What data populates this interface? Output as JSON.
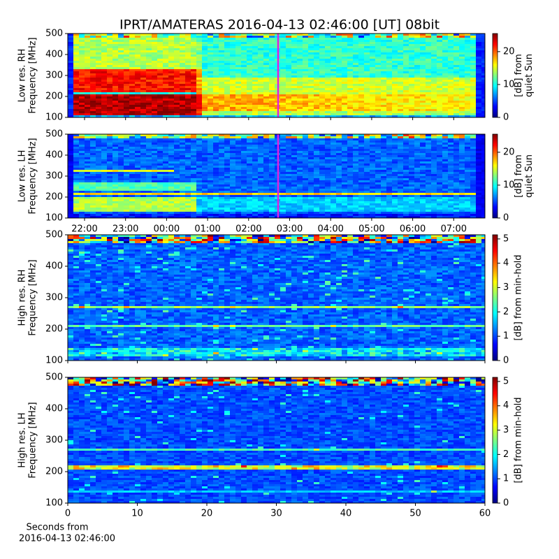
{
  "chart_data": [
    {
      "type": "heatmap",
      "title": "IPRT/AMATERAS 2016-04-13 02:46:00 [UT]   08bit",
      "ylabel": [
        "Low res. RH",
        "Frequency [MHz]"
      ],
      "ylim": [
        100,
        500
      ],
      "yticks": [
        100,
        200,
        300,
        400,
        500
      ],
      "colorbar": {
        "label": [
          "[dB] from",
          "quiet Sun"
        ],
        "lim": [
          0,
          25.5
        ],
        "ticks": [
          0,
          10,
          20
        ]
      }
    },
    {
      "type": "heatmap",
      "ylabel": [
        "Low res. LH",
        "Frequency [MHz]"
      ],
      "ylim": [
        100,
        500
      ],
      "yticks": [
        100,
        200,
        300,
        400,
        500
      ],
      "categories": [
        "22:00",
        "23:00",
        "00:00",
        "01:00",
        "02:00",
        "03:00",
        "04:00",
        "05:00",
        "06:00",
        "07:00"
      ],
      "colorbar": {
        "label": [
          "[dB] from",
          "quiet Sun"
        ],
        "lim": [
          0,
          25.5
        ],
        "ticks": [
          0,
          10,
          20
        ]
      }
    },
    {
      "type": "heatmap",
      "ylabel": [
        "High res. RH",
        "Frequency [MHz]"
      ],
      "ylim": [
        100,
        500
      ],
      "yticks": [
        100,
        200,
        300,
        400,
        500
      ],
      "colorbar": {
        "label": [
          "[dB] from min-hold"
        ],
        "lim": [
          0,
          5.17
        ],
        "ticks": [
          0,
          1,
          2,
          3,
          4,
          5
        ]
      }
    },
    {
      "type": "heatmap",
      "ylabel": [
        "High res. LH",
        "Frequency [MHz]"
      ],
      "ylim": [
        100,
        500
      ],
      "yticks": [
        100,
        200,
        300,
        400,
        500
      ],
      "xlim": [
        0,
        60
      ],
      "xticks": [
        0,
        10,
        20,
        30,
        40,
        50,
        60
      ],
      "xlabel": [
        "Seconds from",
        "2016-04-13 02:46:00"
      ],
      "colorbar": {
        "label": [
          "[dB] from min-hold"
        ],
        "lim": [
          0,
          5.17
        ],
        "ticks": [
          0,
          1,
          2,
          3,
          4,
          5
        ]
      }
    }
  ]
}
